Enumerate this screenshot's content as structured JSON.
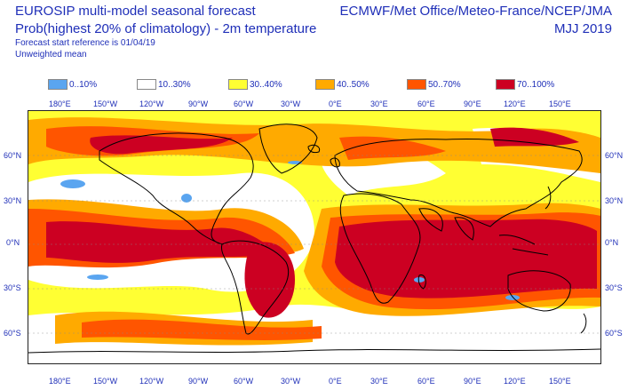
{
  "header": {
    "title_line1": "EUROSIP multi-model seasonal forecast",
    "title_line2": "Prob(highest 20% of climatology) - 2m temperature",
    "forecast_reference": "Forecast start reference is 01/04/19",
    "weighting": "Unweighted mean",
    "sources": "ECMWF/Met Office/Meteo-France/NCEP/JMA",
    "period": "MJJ 2019"
  },
  "legend": [
    {
      "label": "0..10%",
      "color": "#5aa5f0"
    },
    {
      "label": "10..30%",
      "color": "#ffffff"
    },
    {
      "label": "30..40%",
      "color": "#ffff33"
    },
    {
      "label": "40..50%",
      "color": "#ffaa00"
    },
    {
      "label": "50..70%",
      "color": "#ff5500"
    },
    {
      "label": "70..100%",
      "color": "#cc0022"
    }
  ],
  "axes": {
    "lon_top": [
      "180°E",
      "150°W",
      "120°W",
      "90°W",
      "60°W",
      "30°W",
      "0°E",
      "30°E",
      "60°E",
      "90°E",
      "120°E",
      "150°E"
    ],
    "lon_bottom": [
      "180°E",
      "150°W",
      "120°W",
      "90°W",
      "60°W",
      "30°W",
      "0°E",
      "30°E",
      "60°E",
      "90°E",
      "120°E",
      "150°E"
    ],
    "lat_left": [
      "60°N",
      "30°N",
      "0°N",
      "30°S",
      "60°S"
    ],
    "lat_right": [
      "60°N",
      "30°N",
      "0°N",
      "30°S",
      "60°S"
    ]
  },
  "map": {
    "projection": "equirectangular",
    "lon_range": [
      170,
      530
    ],
    "lat_range": [
      -80,
      90
    ],
    "coastlines": "black"
  }
}
